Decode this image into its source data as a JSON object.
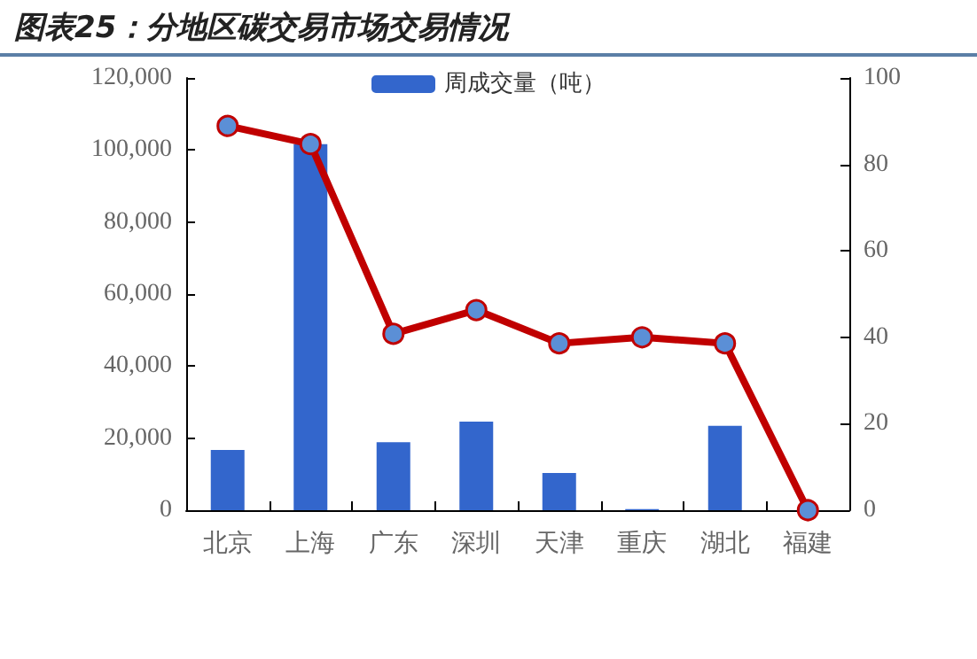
{
  "chart_data": {
    "type": "bar",
    "title": "图表25：分地区碳交易市场交易情况",
    "categories": [
      "北京",
      "上海",
      "广东",
      "深圳",
      "天津",
      "重庆",
      "湖北",
      "福建"
    ],
    "series": [
      {
        "name": "周成交量（吨）",
        "color": "#3366cc",
        "values": [
          16700,
          101600,
          18900,
          24600,
          10300,
          300,
          23400,
          0
        ]
      },
      {
        "type": "line",
        "axis": "y2",
        "color": "#c00000",
        "marker": "circle",
        "line_style": "solid",
        "values": [
          88.9,
          84.7,
          40.8,
          46.3,
          38.6,
          40.0,
          38.6,
          0
        ]
      }
    ],
    "ylim": [
      0,
      120000
    ],
    "yticks": [
      0,
      {
        "value": 20000,
        "label": "20,000"
      },
      {
        "value": 40000,
        "label": "40,000"
      },
      {
        "value": 60000,
        "label": "60,000"
      },
      {
        "value": 80000,
        "label": "80,000"
      },
      {
        "value": 100000,
        "label": "100,000"
      },
      {
        "value": 120000,
        "label": "120,000"
      }
    ],
    "y2lim": [
      0,
      100
    ],
    "y2ticks": [
      0,
      20,
      40,
      60,
      80,
      100
    ],
    "grid": false,
    "legend": "top"
  }
}
